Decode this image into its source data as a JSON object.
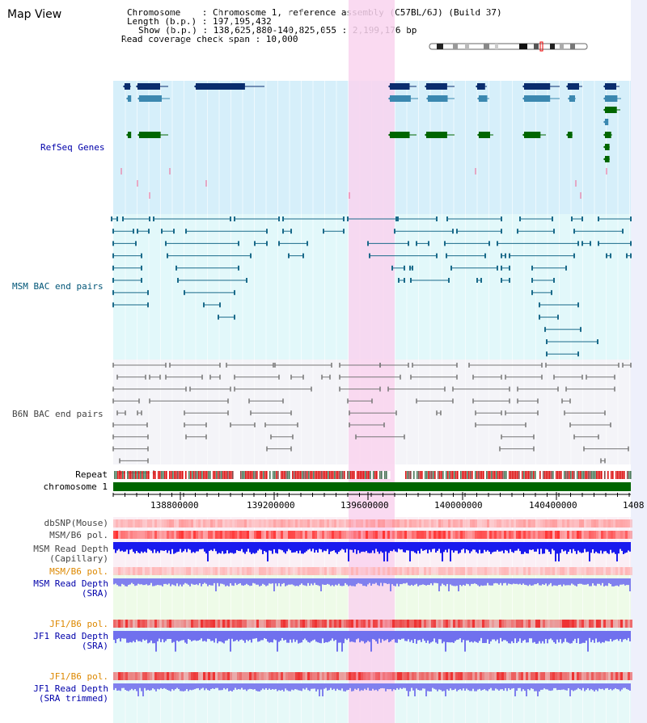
{
  "title": "Map View",
  "info": {
    "chromosome": "Chromosome    : Chromosome 1, reference assembly (C57BL/6J) (Build 37)",
    "length": "Length (b.p.) : 197,195,432",
    "show": "Show (b.p.) : 138,625,880-140,825,055 : 2,199,176 bp",
    "coverage": "Read coverage check span : 10,000"
  },
  "tracks": {
    "refseq": "RefSeq Genes",
    "msm_bac": "MSM BAC end pairs",
    "b6n_bac": "B6N BAC end pairs",
    "repeat": "Repeat",
    "chromosome": "chromosome 1",
    "dbsnp": "dbSNP(Mouse)",
    "msm_pol1": "MSM/B6 pol.",
    "msm_depth_cap_1": "MSM Read Depth",
    "msm_depth_cap_2": "(Capillary)",
    "msm_pol2": "MSM/B6 pol.",
    "msm_depth_sra_1": "MSM Read Depth",
    "msm_depth_sra_2": "(SRA)",
    "jf1_pol1": "JF1/B6 pol.",
    "jf1_depth_sra_1": "JF1 Read Depth",
    "jf1_depth_sra_2": "(SRA)",
    "jf1_pol2": "JF1/B6 pol.",
    "jf1_depth_trim_1": "JF1 Read Depth",
    "jf1_depth_trim_2": "(SRA trimmed)"
  },
  "axis": {
    "ticks": [
      "138800000",
      "139200000",
      "139600000",
      "140000000",
      "140400000",
      "1408"
    ]
  },
  "colors": {
    "refseq_label": "#0000aa",
    "msm_label": "#005577",
    "b6n_label": "#444444",
    "highlight": "#f9d3ee",
    "gene_dark": "#0a2d6e",
    "gene_light": "#3b88b0",
    "gene_green": "#006600",
    "chromosome": "#006600",
    "depth_blue": "#1a1aee",
    "depth_light": "#7a7af0",
    "pol_red": "#ee2222",
    "orange_label": "#dd8800"
  }
}
